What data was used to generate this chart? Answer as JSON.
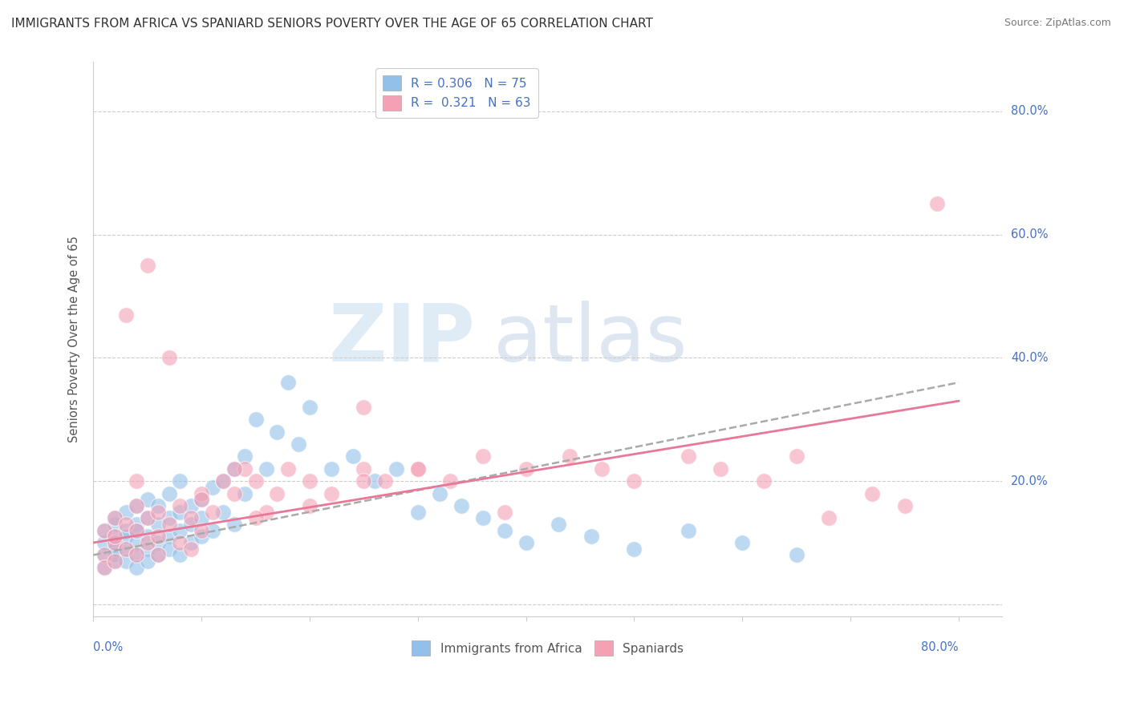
{
  "title": "IMMIGRANTS FROM AFRICA VS SPANIARD SENIORS POVERTY OVER THE AGE OF 65 CORRELATION CHART",
  "source": "Source: ZipAtlas.com",
  "ylabel": "Seniors Poverty Over the Age of 65",
  "xlim": [
    0.0,
    0.84
  ],
  "ylim": [
    -0.02,
    0.88
  ],
  "color_blue": "#92C0E8",
  "color_pink": "#F4A0B5",
  "color_trendline_blue": "#5B9BD5",
  "color_trendline_blue_dashed": "#AAAAAA",
  "color_trendline_pink": "#E87898",
  "color_text_blue": "#4472C4",
  "scatter_blue_x": [
    0.01,
    0.01,
    0.01,
    0.01,
    0.02,
    0.02,
    0.02,
    0.02,
    0.02,
    0.02,
    0.02,
    0.03,
    0.03,
    0.03,
    0.03,
    0.03,
    0.04,
    0.04,
    0.04,
    0.04,
    0.04,
    0.04,
    0.05,
    0.05,
    0.05,
    0.05,
    0.05,
    0.06,
    0.06,
    0.06,
    0.06,
    0.07,
    0.07,
    0.07,
    0.07,
    0.08,
    0.08,
    0.08,
    0.08,
    0.09,
    0.09,
    0.09,
    0.1,
    0.1,
    0.1,
    0.11,
    0.11,
    0.12,
    0.12,
    0.13,
    0.13,
    0.14,
    0.14,
    0.15,
    0.16,
    0.17,
    0.18,
    0.19,
    0.2,
    0.22,
    0.24,
    0.26,
    0.28,
    0.3,
    0.32,
    0.34,
    0.36,
    0.38,
    0.4,
    0.43,
    0.46,
    0.5,
    0.55,
    0.6,
    0.65
  ],
  "scatter_blue_y": [
    0.08,
    0.1,
    0.12,
    0.06,
    0.1,
    0.13,
    0.07,
    0.09,
    0.11,
    0.14,
    0.08,
    0.12,
    0.09,
    0.15,
    0.07,
    0.11,
    0.1,
    0.13,
    0.08,
    0.16,
    0.06,
    0.12,
    0.11,
    0.14,
    0.09,
    0.17,
    0.07,
    0.13,
    0.1,
    0.16,
    0.08,
    0.14,
    0.11,
    0.18,
    0.09,
    0.15,
    0.12,
    0.2,
    0.08,
    0.16,
    0.13,
    0.1,
    0.17,
    0.14,
    0.11,
    0.19,
    0.12,
    0.2,
    0.15,
    0.22,
    0.13,
    0.24,
    0.18,
    0.3,
    0.22,
    0.28,
    0.36,
    0.26,
    0.32,
    0.22,
    0.24,
    0.2,
    0.22,
    0.15,
    0.18,
    0.16,
    0.14,
    0.12,
    0.1,
    0.13,
    0.11,
    0.09,
    0.12,
    0.1,
    0.08
  ],
  "scatter_pink_x": [
    0.01,
    0.01,
    0.01,
    0.02,
    0.02,
    0.02,
    0.02,
    0.03,
    0.03,
    0.03,
    0.04,
    0.04,
    0.04,
    0.04,
    0.05,
    0.05,
    0.05,
    0.06,
    0.06,
    0.06,
    0.07,
    0.07,
    0.08,
    0.08,
    0.09,
    0.09,
    0.1,
    0.1,
    0.11,
    0.12,
    0.13,
    0.14,
    0.15,
    0.16,
    0.17,
    0.18,
    0.2,
    0.22,
    0.25,
    0.27,
    0.3,
    0.33,
    0.36,
    0.4,
    0.44,
    0.47,
    0.5,
    0.55,
    0.58,
    0.62,
    0.65,
    0.68,
    0.72,
    0.75,
    0.3,
    0.38,
    0.15,
    0.2,
    0.25,
    0.1,
    0.13,
    0.25,
    0.78
  ],
  "scatter_pink_y": [
    0.08,
    0.12,
    0.06,
    0.14,
    0.1,
    0.07,
    0.11,
    0.47,
    0.09,
    0.13,
    0.16,
    0.08,
    0.12,
    0.2,
    0.1,
    0.14,
    0.55,
    0.11,
    0.15,
    0.08,
    0.13,
    0.4,
    0.1,
    0.16,
    0.14,
    0.09,
    0.18,
    0.12,
    0.15,
    0.2,
    0.18,
    0.22,
    0.2,
    0.15,
    0.18,
    0.22,
    0.2,
    0.18,
    0.22,
    0.2,
    0.22,
    0.2,
    0.24,
    0.22,
    0.24,
    0.22,
    0.2,
    0.24,
    0.22,
    0.2,
    0.24,
    0.14,
    0.18,
    0.16,
    0.22,
    0.15,
    0.14,
    0.16,
    0.2,
    0.17,
    0.22,
    0.32,
    0.65
  ]
}
